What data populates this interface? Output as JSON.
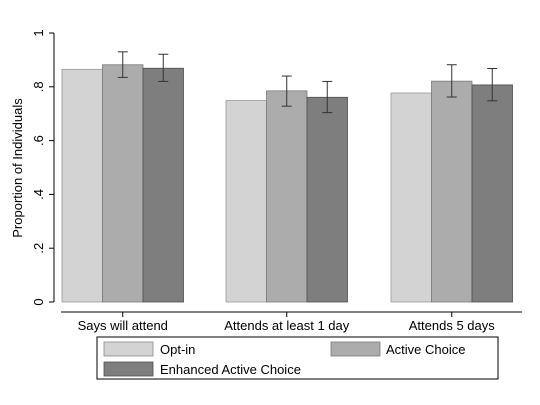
{
  "chart_data": {
    "type": "bar",
    "title": "",
    "xlabel": "",
    "ylabel": "Proportion of Individuals",
    "ylim": [
      0,
      1
    ],
    "yticks": [
      0,
      0.2,
      0.4,
      0.6,
      0.8,
      1
    ],
    "ytick_labels": [
      "0",
      ".2",
      ".4",
      ".6",
      ".8",
      "1"
    ],
    "grid": false,
    "legend_position": "bottom",
    "categories": [
      "Says will attend",
      "Attends at least 1 day",
      "Attends 5 days"
    ],
    "series": [
      {
        "name": "Opt-in",
        "color": "#d3d3d3",
        "values": [
          0.865,
          0.749,
          0.777
        ],
        "error_low": [
          null,
          null,
          null
        ],
        "error_high": [
          null,
          null,
          null
        ]
      },
      {
        "name": "Active Choice",
        "color": "#acacac",
        "values": [
          0.882,
          0.785,
          0.821
        ],
        "error_low": [
          0.835,
          0.728,
          0.762
        ],
        "error_high": [
          0.93,
          0.84,
          0.882
        ]
      },
      {
        "name": "Enhanced Active Choice",
        "color": "#7e7e7e",
        "values": [
          0.869,
          0.761,
          0.807
        ],
        "error_low": [
          0.82,
          0.704,
          0.748
        ],
        "error_high": [
          0.921,
          0.82,
          0.868
        ]
      }
    ]
  }
}
